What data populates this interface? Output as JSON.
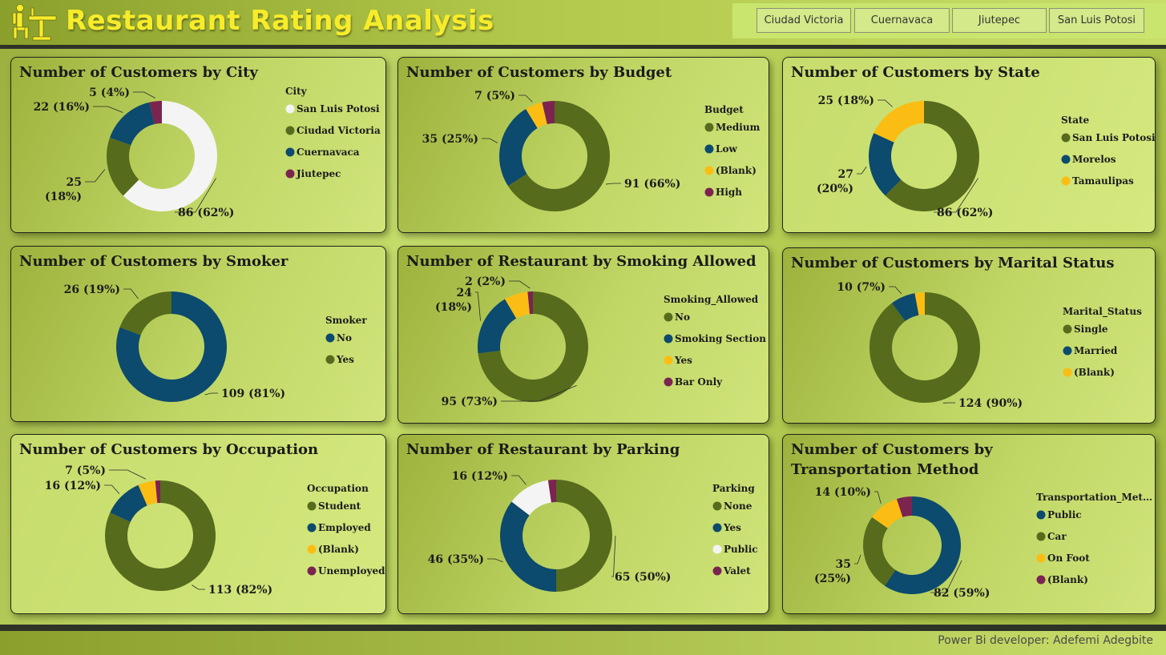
{
  "app": {
    "title": "Restaurant Rating Analysis",
    "credit": "Power Bi developer: Adefemi Adegbite"
  },
  "slicer": {
    "items": [
      "Ciudad Victoria",
      "Cuernavaca",
      "Jiutepec",
      "San Luis Potosi"
    ]
  },
  "colors": {
    "olive": "#566b1c",
    "navy": "#0c4a6e",
    "white": "#f4f4f4",
    "yellow": "#fbbd13",
    "maroon": "#7b2450"
  },
  "chart_data": [
    {
      "type": "pie",
      "title": "Number of Customers by City",
      "legend_title": "City",
      "series": [
        {
          "name": "San Luis Potosi",
          "value": 86,
          "label": "86 (62%)"
        },
        {
          "name": "Ciudad Victoria",
          "value": 25,
          "label": "25 (18%)"
        },
        {
          "name": "Cuernavaca",
          "value": 22,
          "label": "22 (16%)"
        },
        {
          "name": "Jiutepec",
          "value": 5,
          "label": "5 (4%)"
        }
      ]
    },
    {
      "type": "pie",
      "title": "Number of Customers by Budget",
      "legend_title": "Budget",
      "series": [
        {
          "name": "Medium",
          "value": 91,
          "label": "91 (66%)"
        },
        {
          "name": "Low",
          "value": 35,
          "label": "35 (25%)"
        },
        {
          "name": "(Blank)",
          "value": 7,
          "label": "7 (5%)"
        },
        {
          "name": "High",
          "value": 5,
          "label": ""
        }
      ]
    },
    {
      "type": "pie",
      "title": "Number of Customers by State",
      "legend_title": "State",
      "series": [
        {
          "name": "San Luis Potosi",
          "value": 86,
          "label": "86 (62%)"
        },
        {
          "name": "Morelos",
          "value": 27,
          "label": "27 (20%)"
        },
        {
          "name": "Tamaulipas",
          "value": 25,
          "label": "25 (18%)"
        }
      ]
    },
    {
      "type": "pie",
      "title": "Number of Customers by Smoker",
      "legend_title": "Smoker",
      "series": [
        {
          "name": "No",
          "value": 109,
          "label": "109 (81%)"
        },
        {
          "name": "Yes",
          "value": 26,
          "label": "26 (19%)"
        }
      ]
    },
    {
      "type": "pie",
      "title": "Number of Restaurant by Smoking Allowed",
      "legend_title": "Smoking_Allowed",
      "series": [
        {
          "name": "No",
          "value": 95,
          "label": "95 (73%)"
        },
        {
          "name": "Smoking Section",
          "value": 24,
          "label": "24 (18%)"
        },
        {
          "name": "Yes",
          "value": 9,
          "label": ""
        },
        {
          "name": "Bar Only",
          "value": 2,
          "label": "2 (2%)"
        }
      ]
    },
    {
      "type": "pie",
      "title": "Number of Customers by Marital Status",
      "legend_title": "Marital_Status",
      "series": [
        {
          "name": "Single",
          "value": 124,
          "label": "124 (90%)"
        },
        {
          "name": "Married",
          "value": 10,
          "label": "10 (7%)"
        },
        {
          "name": "(Blank)",
          "value": 4,
          "label": ""
        }
      ]
    },
    {
      "type": "pie",
      "title": "Number of Customers by Occupation",
      "legend_title": "Occupation",
      "series": [
        {
          "name": "Student",
          "value": 113,
          "label": "113 (82%)"
        },
        {
          "name": "Employed",
          "value": 16,
          "label": "16 (12%)"
        },
        {
          "name": "(Blank)",
          "value": 7,
          "label": "7 (5%)"
        },
        {
          "name": "Unemployed",
          "value": 2,
          "label": ""
        }
      ]
    },
    {
      "type": "pie",
      "title": "Number of Restaurant by Parking",
      "legend_title": "Parking",
      "series": [
        {
          "name": "None",
          "value": 65,
          "label": "65 (50%)"
        },
        {
          "name": "Yes",
          "value": 46,
          "label": "46 (35%)"
        },
        {
          "name": "Public",
          "value": 16,
          "label": "16 (12%)"
        },
        {
          "name": "Valet",
          "value": 3,
          "label": ""
        }
      ]
    },
    {
      "type": "pie",
      "title": "Number of Customers by Transportation Method",
      "legend_title": "Transportation_Met…",
      "series": [
        {
          "name": "Public",
          "value": 82,
          "label": "82 (59%)"
        },
        {
          "name": "Car",
          "value": 35,
          "label": "35 (25%)"
        },
        {
          "name": "On Foot",
          "value": 14,
          "label": "14 (10%)"
        },
        {
          "name": "(Blank)",
          "value": 7,
          "label": ""
        }
      ]
    }
  ]
}
